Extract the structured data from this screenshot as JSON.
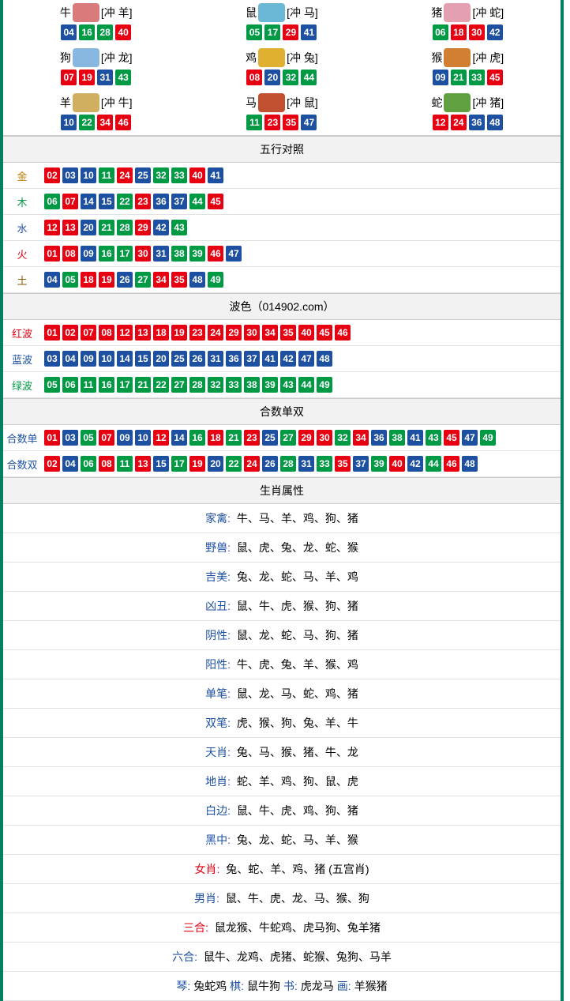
{
  "colors": {
    "red": "#e60012",
    "blue": "#1e50a2",
    "green": "#009944"
  },
  "label_colors": {
    "金": "#c07b00",
    "木": "#009944",
    "水": "#1e50a2",
    "火": "#e60012",
    "土": "#8b5a00",
    "红波": "#e60012",
    "蓝波": "#1e50a2",
    "绿波": "#009944",
    "合数单": "#1e50a2",
    "合数双": "#1e50a2"
  },
  "num_color_map": {
    "01": "red",
    "02": "red",
    "07": "red",
    "08": "red",
    "12": "red",
    "13": "red",
    "18": "red",
    "19": "red",
    "23": "red",
    "24": "red",
    "29": "red",
    "30": "red",
    "34": "red",
    "35": "red",
    "40": "red",
    "45": "red",
    "46": "red",
    "03": "blue",
    "04": "blue",
    "09": "blue",
    "10": "blue",
    "14": "blue",
    "15": "blue",
    "20": "blue",
    "25": "blue",
    "26": "blue",
    "31": "blue",
    "36": "blue",
    "37": "blue",
    "41": "blue",
    "42": "blue",
    "47": "blue",
    "48": "blue",
    "05": "green",
    "06": "green",
    "11": "green",
    "16": "green",
    "17": "green",
    "21": "green",
    "22": "green",
    "27": "green",
    "28": "green",
    "32": "green",
    "33": "green",
    "38": "green",
    "39": "green",
    "43": "green",
    "44": "green",
    "49": "green"
  },
  "zodiac_grid": [
    {
      "name": "牛",
      "conflict": "[冲 羊]",
      "icon_color": "#d97b7b",
      "nums": [
        "04",
        "16",
        "28",
        "40"
      ]
    },
    {
      "name": "鼠",
      "conflict": "[冲 马]",
      "icon_color": "#6bb8d6",
      "nums": [
        "05",
        "17",
        "29",
        "41"
      ]
    },
    {
      "name": "猪",
      "conflict": "[冲 蛇]",
      "icon_color": "#e4a0b0",
      "nums": [
        "06",
        "18",
        "30",
        "42"
      ]
    },
    {
      "name": "狗",
      "conflict": "[冲 龙]",
      "icon_color": "#88b8e0",
      "nums": [
        "07",
        "19",
        "31",
        "43"
      ]
    },
    {
      "name": "鸡",
      "conflict": "[冲 兔]",
      "icon_color": "#e0b030",
      "nums": [
        "08",
        "20",
        "32",
        "44"
      ]
    },
    {
      "name": "猴",
      "conflict": "[冲 虎]",
      "icon_color": "#d08030",
      "nums": [
        "09",
        "21",
        "33",
        "45"
      ]
    },
    {
      "name": "羊",
      "conflict": "[冲 牛]",
      "icon_color": "#d0b060",
      "nums": [
        "10",
        "22",
        "34",
        "46"
      ]
    },
    {
      "name": "马",
      "conflict": "[冲 鼠]",
      "icon_color": "#c05030",
      "nums": [
        "11",
        "23",
        "35",
        "47"
      ]
    },
    {
      "name": "蛇",
      "conflict": "[冲 猪]",
      "icon_color": "#60a040",
      "nums": [
        "12",
        "24",
        "36",
        "48"
      ]
    }
  ],
  "wuxing": {
    "title": "五行对照",
    "rows": [
      {
        "label": "金",
        "nums": [
          "02",
          "03",
          "10",
          "11",
          "24",
          "25",
          "32",
          "33",
          "40",
          "41"
        ]
      },
      {
        "label": "木",
        "nums": [
          "06",
          "07",
          "14",
          "15",
          "22",
          "23",
          "36",
          "37",
          "44",
          "45"
        ]
      },
      {
        "label": "水",
        "nums": [
          "12",
          "13",
          "20",
          "21",
          "28",
          "29",
          "42",
          "43"
        ]
      },
      {
        "label": "火",
        "nums": [
          "01",
          "08",
          "09",
          "16",
          "17",
          "30",
          "31",
          "38",
          "39",
          "46",
          "47"
        ]
      },
      {
        "label": "土",
        "nums": [
          "04",
          "05",
          "18",
          "19",
          "26",
          "27",
          "34",
          "35",
          "48",
          "49"
        ]
      }
    ]
  },
  "bose": {
    "title": "波色（014902.com）",
    "rows": [
      {
        "label": "红波",
        "nums": [
          "01",
          "02",
          "07",
          "08",
          "12",
          "13",
          "18",
          "19",
          "23",
          "24",
          "29",
          "30",
          "34",
          "35",
          "40",
          "45",
          "46"
        ]
      },
      {
        "label": "蓝波",
        "nums": [
          "03",
          "04",
          "09",
          "10",
          "14",
          "15",
          "20",
          "25",
          "26",
          "31",
          "36",
          "37",
          "41",
          "42",
          "47",
          "48"
        ]
      },
      {
        "label": "绿波",
        "nums": [
          "05",
          "06",
          "11",
          "16",
          "17",
          "21",
          "22",
          "27",
          "28",
          "32",
          "33",
          "38",
          "39",
          "43",
          "44",
          "49"
        ]
      }
    ]
  },
  "heshu": {
    "title": "合数单双",
    "rows": [
      {
        "label": "合数单",
        "nums": [
          "01",
          "03",
          "05",
          "07",
          "09",
          "10",
          "12",
          "14",
          "16",
          "18",
          "21",
          "23",
          "25",
          "27",
          "29",
          "30",
          "32",
          "34",
          "36",
          "38",
          "41",
          "43",
          "45",
          "47",
          "49"
        ]
      },
      {
        "label": "合数双",
        "nums": [
          "02",
          "04",
          "06",
          "08",
          "11",
          "13",
          "15",
          "17",
          "19",
          "20",
          "22",
          "24",
          "26",
          "28",
          "31",
          "33",
          "35",
          "37",
          "39",
          "40",
          "42",
          "44",
          "46",
          "48"
        ]
      }
    ]
  },
  "attrs": {
    "title": "生肖属性",
    "rows": [
      {
        "label": "家禽:",
        "label_color": "#1e50a2",
        "text": "牛、马、羊、鸡、狗、猪"
      },
      {
        "label": "野兽:",
        "label_color": "#1e50a2",
        "text": "鼠、虎、兔、龙、蛇、猴"
      },
      {
        "label": "吉美:",
        "label_color": "#1e50a2",
        "text": "兔、龙、蛇、马、羊、鸡"
      },
      {
        "label": "凶丑:",
        "label_color": "#1e50a2",
        "text": "鼠、牛、虎、猴、狗、猪"
      },
      {
        "label": "阴性:",
        "label_color": "#1e50a2",
        "text": "鼠、龙、蛇、马、狗、猪"
      },
      {
        "label": "阳性:",
        "label_color": "#1e50a2",
        "text": "牛、虎、兔、羊、猴、鸡"
      },
      {
        "label": "单笔:",
        "label_color": "#1e50a2",
        "text": "鼠、龙、马、蛇、鸡、猪"
      },
      {
        "label": "双笔:",
        "label_color": "#1e50a2",
        "text": "虎、猴、狗、兔、羊、牛"
      },
      {
        "label": "天肖:",
        "label_color": "#1e50a2",
        "text": "兔、马、猴、猪、牛、龙"
      },
      {
        "label": "地肖:",
        "label_color": "#1e50a2",
        "text": "蛇、羊、鸡、狗、鼠、虎"
      },
      {
        "label": "白边:",
        "label_color": "#1e50a2",
        "text": "鼠、牛、虎、鸡、狗、猪"
      },
      {
        "label": "黑中:",
        "label_color": "#1e50a2",
        "text": "兔、龙、蛇、马、羊、猴"
      },
      {
        "label": "女肖:",
        "label_color": "#e60012",
        "text": "兔、蛇、羊、鸡、猪 (五宫肖)"
      },
      {
        "label": "男肖:",
        "label_color": "#1e50a2",
        "text": "鼠、牛、虎、龙、马、猴、狗"
      },
      {
        "label": "三合:",
        "label_color": "#e60012",
        "text": "鼠龙猴、牛蛇鸡、虎马狗、兔羊猪"
      },
      {
        "label": "六合:",
        "label_color": "#1e50a2",
        "text": "鼠牛、龙鸡、虎猪、蛇猴、兔狗、马羊"
      }
    ],
    "bottom": {
      "parts": [
        {
          "label": "琴:",
          "label_color": "#1e50a2",
          "text": "兔蛇鸡   "
        },
        {
          "label": "棋:",
          "label_color": "#1e50a2",
          "text": "鼠牛狗   "
        },
        {
          "label": "书:",
          "label_color": "#1e50a2",
          "text": "虎龙马   "
        },
        {
          "label": "画:",
          "label_color": "#1e50a2",
          "text": "羊猴猪"
        }
      ]
    }
  }
}
